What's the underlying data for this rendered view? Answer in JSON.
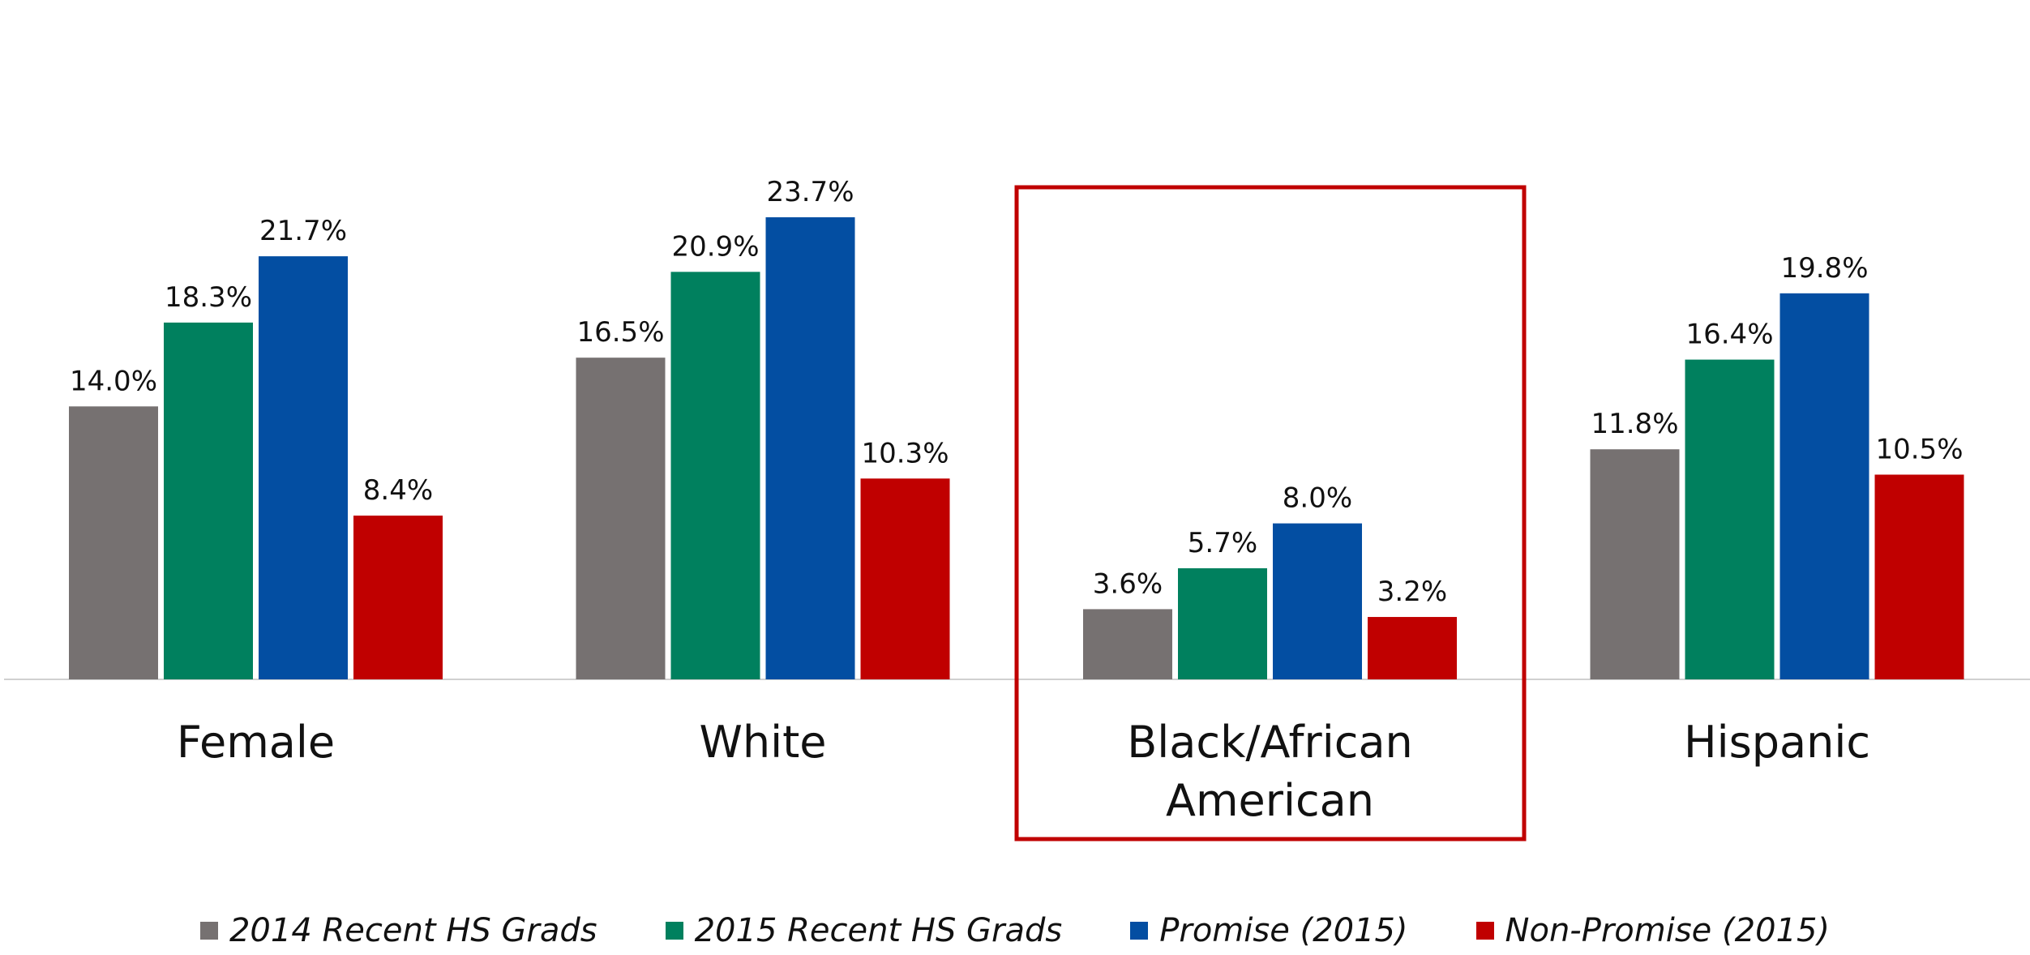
{
  "chart_data": {
    "type": "bar",
    "categories": [
      "Female",
      "White",
      "Black/African American",
      "Hispanic"
    ],
    "category_lines": [
      [
        "Female"
      ],
      [
        "White"
      ],
      [
        "Black/African",
        "American"
      ],
      [
        "Hispanic"
      ]
    ],
    "series": [
      {
        "name": "2014 Recent HS Grads",
        "color": "#767171",
        "values": [
          14.0,
          16.5,
          3.6,
          11.8
        ],
        "labels": [
          "14.0%",
          "16.5%",
          "3.6%",
          "11.8%"
        ]
      },
      {
        "name": "2015 Recent HS Grads",
        "color": "#00805E",
        "values": [
          18.3,
          20.9,
          5.7,
          16.4
        ],
        "labels": [
          "18.3%",
          "20.9%",
          "5.7%",
          "16.4%"
        ]
      },
      {
        "name": "Promise (2015)",
        "color": "#034EA2",
        "values": [
          21.7,
          23.7,
          8.0,
          19.8
        ],
        "labels": [
          "21.7%",
          "23.7%",
          "8.0%",
          "19.8%"
        ]
      },
      {
        "name": "Non-Promise (2015)",
        "color": "#C00000",
        "values": [
          8.4,
          10.3,
          3.2,
          10.5
        ],
        "labels": [
          "8.4%",
          "10.3%",
          "3.2%",
          "10.5%"
        ]
      }
    ],
    "ylim": [
      0,
      25
    ],
    "grid": false,
    "legend_position": "bottom",
    "highlighted_category": "Black/African American",
    "highlight_color": "#C00000",
    "xlabel": "",
    "ylabel": ""
  }
}
